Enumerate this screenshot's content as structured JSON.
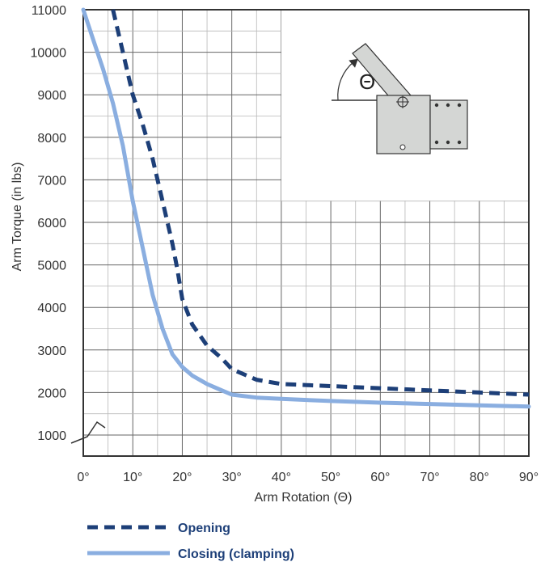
{
  "chart_data": {
    "type": "line",
    "xlabel": "Arm Rotation (Θ)",
    "ylabel": "Arm Torque (in lbs)",
    "x_ticks": [
      "0°",
      "10°",
      "20°",
      "30°",
      "40°",
      "50°",
      "60°",
      "70°",
      "80°",
      "90°"
    ],
    "y_ticks": [
      "1000",
      "2000",
      "3000",
      "4000",
      "5000",
      "6000",
      "7000",
      "8000",
      "9000",
      "10000",
      "11000"
    ],
    "xlim": [
      0,
      90
    ],
    "ylim": [
      1000,
      11000
    ],
    "axis_break": "y",
    "grid": true,
    "legend_position": "bottom-left",
    "inset_label": "Θ",
    "series": [
      {
        "name": "Opening",
        "style": "dashed",
        "color": "#1d3f78",
        "x": [
          6,
          8,
          10,
          12,
          14,
          16,
          18,
          19,
          20,
          22,
          25,
          28,
          30,
          35,
          40,
          50,
          60,
          70,
          80,
          90
        ],
        "y": [
          11000,
          10000,
          9000,
          8300,
          7500,
          6500,
          5500,
          4900,
          4200,
          3600,
          3100,
          2800,
          2550,
          2300,
          2200,
          2150,
          2100,
          2050,
          2000,
          1950
        ]
      },
      {
        "name": "Closing (clamping)",
        "style": "solid",
        "color": "#8aaee0",
        "x": [
          0,
          2,
          4,
          6,
          8,
          10,
          12,
          14,
          16,
          18,
          20,
          22,
          25,
          28,
          30,
          35,
          40,
          50,
          60,
          70,
          80,
          90
        ],
        "y": [
          11000,
          10300,
          9600,
          8800,
          7800,
          6500,
          5400,
          4300,
          3500,
          2900,
          2600,
          2400,
          2200,
          2050,
          1950,
          1880,
          1850,
          1800,
          1760,
          1730,
          1700,
          1670
        ]
      }
    ]
  }
}
